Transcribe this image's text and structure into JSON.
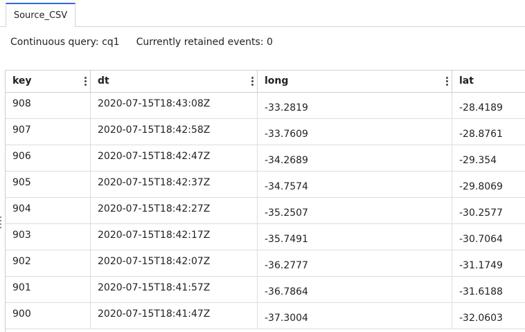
{
  "tabs": [
    {
      "label": "Source_CSV",
      "active": true
    }
  ],
  "info": {
    "query_label": "Continuous query: cq1",
    "retained_label": "Currently retained events: 0"
  },
  "columns": [
    {
      "label": "key"
    },
    {
      "label": "dt"
    },
    {
      "label": "long"
    },
    {
      "label": "lat"
    }
  ],
  "rows": [
    {
      "key": "908",
      "dt": "2020-07-15T18:43:08Z",
      "long": "-33.2819",
      "lat": "-28.4189"
    },
    {
      "key": "907",
      "dt": "2020-07-15T18:42:58Z",
      "long": "-33.7609",
      "lat": "-28.8761"
    },
    {
      "key": "906",
      "dt": "2020-07-15T18:42:47Z",
      "long": "-34.2689",
      "lat": "-29.354"
    },
    {
      "key": "905",
      "dt": "2020-07-15T18:42:37Z",
      "long": "-34.7574",
      "lat": "-29.8069"
    },
    {
      "key": "904",
      "dt": "2020-07-15T18:42:27Z",
      "long": "-35.2507",
      "lat": "-30.2577"
    },
    {
      "key": "903",
      "dt": "2020-07-15T18:42:17Z",
      "long": "-35.7491",
      "lat": "-30.7064"
    },
    {
      "key": "902",
      "dt": "2020-07-15T18:42:07Z",
      "long": "-36.2777",
      "lat": "-31.1749"
    },
    {
      "key": "901",
      "dt": "2020-07-15T18:41:57Z",
      "long": "-36.7864",
      "lat": "-31.6188"
    },
    {
      "key": "900",
      "dt": "2020-07-15T18:41:47Z",
      "long": "-37.3004",
      "lat": "-32.0603"
    }
  ],
  "icons": {
    "column_menu": "vertical-ellipsis-icon",
    "resize": "drag-handle-icon"
  },
  "colors": {
    "tab_accent": "#2f6bd8"
  }
}
